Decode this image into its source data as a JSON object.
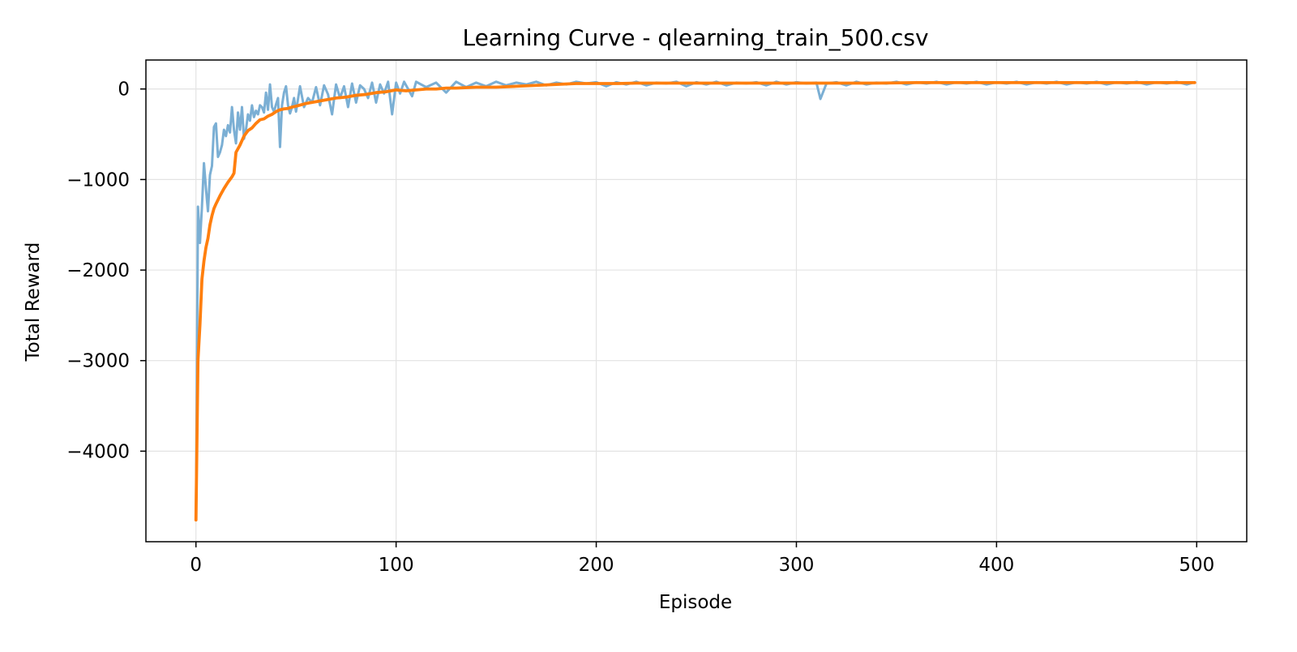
{
  "chart_data": {
    "type": "line",
    "title": "Learning Curve - qlearning_train_500.csv",
    "xlabel": "Episode",
    "ylabel": "Total Reward",
    "xlim": [
      -25,
      525
    ],
    "ylim": [
      -5000,
      320
    ],
    "grid": true,
    "x_ticks": [
      0,
      100,
      200,
      300,
      400,
      500
    ],
    "x_tick_labels": [
      "0",
      "100",
      "200",
      "300",
      "400",
      "500"
    ],
    "y_ticks": [
      0,
      -1000,
      -2000,
      -3000,
      -4000
    ],
    "y_tick_labels": [
      "0",
      "−1000",
      "−2000",
      "−3000",
      "−4000"
    ],
    "series": [
      {
        "color": "#7bafd4",
        "x": [
          0,
          1,
          2,
          3,
          4,
          5,
          6,
          7,
          8,
          9,
          10,
          11,
          12,
          13,
          14,
          15,
          16,
          17,
          18,
          19,
          20,
          21,
          22,
          23,
          24,
          25,
          26,
          27,
          28,
          29,
          30,
          31,
          32,
          33,
          34,
          35,
          36,
          37,
          38,
          39,
          40,
          41,
          42,
          43,
          44,
          45,
          46,
          47,
          48,
          49,
          50,
          52,
          54,
          56,
          58,
          60,
          62,
          64,
          66,
          68,
          70,
          72,
          74,
          76,
          78,
          80,
          82,
          84,
          86,
          88,
          90,
          92,
          94,
          96,
          98,
          100,
          102,
          104,
          106,
          108,
          110,
          115,
          120,
          125,
          130,
          135,
          140,
          145,
          150,
          155,
          160,
          165,
          170,
          175,
          180,
          185,
          190,
          195,
          200,
          205,
          210,
          215,
          220,
          225,
          230,
          235,
          240,
          245,
          250,
          255,
          260,
          265,
          270,
          275,
          280,
          285,
          290,
          295,
          300,
          305,
          310,
          312,
          315,
          320,
          325,
          330,
          335,
          340,
          345,
          350,
          355,
          360,
          365,
          370,
          375,
          380,
          385,
          390,
          395,
          400,
          405,
          410,
          415,
          420,
          425,
          430,
          435,
          440,
          445,
          450,
          455,
          460,
          465,
          470,
          475,
          480,
          485,
          490,
          495,
          499
        ],
        "y": [
          -4760,
          -1300,
          -1700,
          -1300,
          -820,
          -1100,
          -1350,
          -950,
          -850,
          -420,
          -380,
          -750,
          -700,
          -620,
          -450,
          -520,
          -400,
          -480,
          -200,
          -450,
          -600,
          -260,
          -450,
          -200,
          -550,
          -450,
          -280,
          -350,
          -180,
          -310,
          -240,
          -280,
          -180,
          -200,
          -260,
          -40,
          -230,
          50,
          -200,
          -250,
          -170,
          -100,
          -640,
          -180,
          -40,
          30,
          -180,
          -270,
          -200,
          -100,
          -250,
          30,
          -200,
          -100,
          -150,
          20,
          -180,
          40,
          -60,
          -280,
          50,
          -100,
          30,
          -200,
          60,
          -150,
          40,
          0,
          -100,
          70,
          -150,
          50,
          -50,
          80,
          -280,
          70,
          -50,
          80,
          0,
          -80,
          80,
          20,
          70,
          -40,
          80,
          20,
          70,
          30,
          80,
          40,
          70,
          50,
          80,
          40,
          70,
          50,
          80,
          60,
          75,
          30,
          75,
          50,
          80,
          40,
          70,
          60,
          80,
          30,
          75,
          50,
          80,
          40,
          70,
          60,
          75,
          40,
          80,
          50,
          75,
          60,
          70,
          -110,
          60,
          75,
          40,
          80,
          50,
          70,
          60,
          80,
          50,
          75,
          60,
          80,
          50,
          75,
          60,
          80,
          50,
          75,
          60,
          80,
          50,
          75,
          60,
          80,
          50,
          75,
          60,
          80,
          50,
          75,
          60,
          80,
          50,
          75,
          60,
          80,
          50,
          75
        ]
      },
      {
        "color": "#ff7f0e",
        "x": [
          0,
          1,
          2,
          3,
          4,
          5,
          6,
          7,
          8,
          9,
          10,
          12,
          14,
          16,
          18,
          19,
          20,
          22,
          24,
          26,
          28,
          30,
          32,
          34,
          36,
          38,
          40,
          42,
          44,
          46,
          48,
          50,
          55,
          60,
          65,
          70,
          75,
          80,
          85,
          90,
          95,
          100,
          105,
          110,
          115,
          120,
          125,
          130,
          140,
          150,
          160,
          170,
          180,
          190,
          200,
          210,
          220,
          230,
          240,
          250,
          260,
          270,
          280,
          290,
          300,
          320,
          340,
          360,
          380,
          400,
          420,
          440,
          460,
          480,
          499
        ],
        "y": [
          -4760,
          -3000,
          -2600,
          -2100,
          -1900,
          -1750,
          -1650,
          -1500,
          -1400,
          -1320,
          -1270,
          -1180,
          -1100,
          -1030,
          -970,
          -930,
          -700,
          -620,
          -520,
          -460,
          -430,
          -380,
          -340,
          -330,
          -300,
          -280,
          -250,
          -230,
          -220,
          -215,
          -200,
          -190,
          -160,
          -140,
          -120,
          -100,
          -90,
          -70,
          -60,
          -40,
          -30,
          -10,
          -20,
          -10,
          0,
          0,
          10,
          10,
          20,
          20,
          30,
          40,
          50,
          60,
          60,
          60,
          65,
          65,
          65,
          65,
          65,
          65,
          65,
          65,
          65,
          65,
          65,
          70,
          70,
          70,
          70,
          70,
          70,
          70,
          70
        ]
      }
    ]
  }
}
